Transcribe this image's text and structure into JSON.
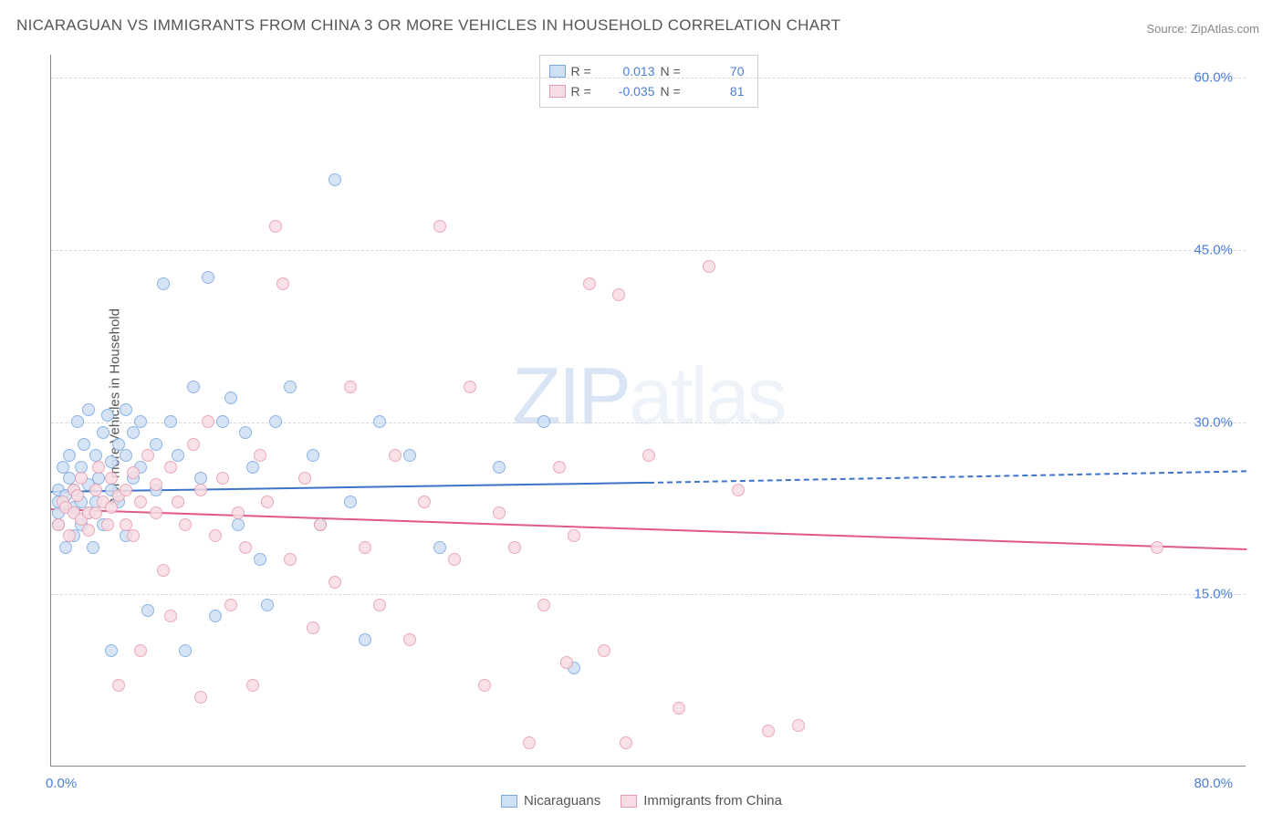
{
  "title": "NICARAGUAN VS IMMIGRANTS FROM CHINA 3 OR MORE VEHICLES IN HOUSEHOLD CORRELATION CHART",
  "source": "Source: ZipAtlas.com",
  "ylabel": "3 or more Vehicles in Household",
  "watermark_a": "ZIP",
  "watermark_b": "atlas",
  "chart": {
    "type": "scatter",
    "xlim": [
      0,
      80
    ],
    "ylim": [
      0,
      62
    ],
    "xtick_labels": [
      "0.0%",
      "80.0%"
    ],
    "ytick_values": [
      15,
      30,
      45,
      60
    ],
    "ytick_labels": [
      "15.0%",
      "30.0%",
      "45.0%",
      "60.0%"
    ],
    "background_color": "#ffffff",
    "grid_color": "#d8d8d8",
    "axis_color": "#878787",
    "label_color": "#4a7fd8",
    "marker_radius": 7,
    "marker_border_width": 1.2,
    "trend_width": 2
  },
  "series": [
    {
      "name": "Nicaraguans",
      "fill": "#cfe0f5",
      "stroke": "#7ba7e0",
      "trend_color": "#3d73c9",
      "R": "0.013",
      "N": "70",
      "trend": {
        "x0": 0,
        "y0": 24.0,
        "x1": 40,
        "y1": 24.8,
        "dash_from_x": 40,
        "dash_to_x": 80,
        "dash_y1": 25.8
      },
      "points": [
        [
          0.5,
          22
        ],
        [
          0.5,
          23
        ],
        [
          0.5,
          24
        ],
        [
          0.5,
          21
        ],
        [
          0.8,
          26
        ],
        [
          1.0,
          19
        ],
        [
          1.0,
          23.5
        ],
        [
          1.2,
          25
        ],
        [
          1.2,
          27
        ],
        [
          1.5,
          20
        ],
        [
          1.5,
          22.5
        ],
        [
          1.5,
          24
        ],
        [
          1.8,
          30
        ],
        [
          2.0,
          21
        ],
        [
          2.0,
          23
        ],
        [
          2.0,
          26
        ],
        [
          2.2,
          28
        ],
        [
          2.5,
          22
        ],
        [
          2.5,
          31
        ],
        [
          2.5,
          24.5
        ],
        [
          2.8,
          19
        ],
        [
          3.0,
          23
        ],
        [
          3.0,
          27
        ],
        [
          3.2,
          25
        ],
        [
          3.5,
          29
        ],
        [
          3.5,
          21
        ],
        [
          3.8,
          30.5
        ],
        [
          4.0,
          24
        ],
        [
          4.0,
          26.5
        ],
        [
          4.0,
          10
        ],
        [
          4.5,
          28
        ],
        [
          4.5,
          23
        ],
        [
          5.0,
          27
        ],
        [
          5.0,
          20
        ],
        [
          5.0,
          31
        ],
        [
          5.5,
          25
        ],
        [
          5.5,
          29
        ],
        [
          6.0,
          30
        ],
        [
          6.0,
          26
        ],
        [
          6.5,
          13.5
        ],
        [
          7.0,
          28
        ],
        [
          7.0,
          24
        ],
        [
          7.5,
          42
        ],
        [
          8.0,
          30
        ],
        [
          8.5,
          27
        ],
        [
          9.0,
          10
        ],
        [
          9.5,
          33
        ],
        [
          10.0,
          25
        ],
        [
          10.5,
          42.5
        ],
        [
          11.0,
          13
        ],
        [
          11.5,
          30
        ],
        [
          12.0,
          32
        ],
        [
          12.5,
          21
        ],
        [
          13.0,
          29
        ],
        [
          13.5,
          26
        ],
        [
          14.0,
          18
        ],
        [
          14.5,
          14
        ],
        [
          15.0,
          30
        ],
        [
          16.0,
          33
        ],
        [
          17.5,
          27
        ],
        [
          18.0,
          21
        ],
        [
          19.0,
          51
        ],
        [
          20.0,
          23
        ],
        [
          21.0,
          11
        ],
        [
          22.0,
          30
        ],
        [
          24.0,
          27
        ],
        [
          26.0,
          19
        ],
        [
          30.0,
          26
        ],
        [
          33.0,
          30
        ],
        [
          35.0,
          8.5
        ]
      ]
    },
    {
      "name": "Immigrants from China",
      "fill": "#f7dce3",
      "stroke": "#e89bb0",
      "trend_color": "#e05a85",
      "R": "-0.035",
      "N": "81",
      "trend": {
        "x0": 0,
        "y0": 22.5,
        "x1": 80,
        "y1": 19.0
      },
      "points": [
        [
          0.5,
          21
        ],
        [
          0.8,
          23
        ],
        [
          1.0,
          22.5
        ],
        [
          1.2,
          20
        ],
        [
          1.5,
          24
        ],
        [
          1.5,
          22
        ],
        [
          1.8,
          23.5
        ],
        [
          2.0,
          21.5
        ],
        [
          2.0,
          25
        ],
        [
          2.5,
          22
        ],
        [
          2.5,
          20.5
        ],
        [
          3.0,
          24
        ],
        [
          3.0,
          22
        ],
        [
          3.2,
          26
        ],
        [
          3.5,
          23
        ],
        [
          3.8,
          21
        ],
        [
          4.0,
          25
        ],
        [
          4.0,
          22.5
        ],
        [
          4.5,
          23.5
        ],
        [
          4.5,
          7
        ],
        [
          5.0,
          24
        ],
        [
          5.0,
          21
        ],
        [
          5.5,
          25.5
        ],
        [
          5.5,
          20
        ],
        [
          6.0,
          23
        ],
        [
          6.0,
          10
        ],
        [
          6.5,
          27
        ],
        [
          7.0,
          22
        ],
        [
          7.0,
          24.5
        ],
        [
          7.5,
          17
        ],
        [
          8.0,
          26
        ],
        [
          8.0,
          13
        ],
        [
          8.5,
          23
        ],
        [
          9.0,
          21
        ],
        [
          9.5,
          28
        ],
        [
          10.0,
          24
        ],
        [
          10.0,
          6
        ],
        [
          10.5,
          30
        ],
        [
          11.0,
          20
        ],
        [
          11.5,
          25
        ],
        [
          12.0,
          14
        ],
        [
          12.5,
          22
        ],
        [
          13.0,
          19
        ],
        [
          13.5,
          7
        ],
        [
          14.0,
          27
        ],
        [
          14.5,
          23
        ],
        [
          15.0,
          47
        ],
        [
          15.5,
          42
        ],
        [
          16.0,
          18
        ],
        [
          17.0,
          25
        ],
        [
          17.5,
          12
        ],
        [
          18.0,
          21
        ],
        [
          19.0,
          16
        ],
        [
          20.0,
          33
        ],
        [
          21.0,
          19
        ],
        [
          22.0,
          14
        ],
        [
          23.0,
          27
        ],
        [
          24.0,
          11
        ],
        [
          25.0,
          23
        ],
        [
          26.0,
          47
        ],
        [
          27.0,
          18
        ],
        [
          28.0,
          33
        ],
        [
          29.0,
          7
        ],
        [
          30.0,
          22
        ],
        [
          31.0,
          19
        ],
        [
          32.0,
          2
        ],
        [
          33.0,
          14
        ],
        [
          34.0,
          26
        ],
        [
          35.0,
          20
        ],
        [
          36.0,
          42
        ],
        [
          37.0,
          10
        ],
        [
          38.0,
          41
        ],
        [
          38.5,
          2
        ],
        [
          40.0,
          27
        ],
        [
          42.0,
          5
        ],
        [
          44.0,
          43.5
        ],
        [
          46.0,
          24
        ],
        [
          48.0,
          3
        ],
        [
          50.0,
          3.5
        ],
        [
          74.0,
          19
        ],
        [
          34.5,
          9
        ]
      ]
    }
  ],
  "stats_box": {
    "r_label": "R =",
    "n_label": "N ="
  },
  "bottom_legend": {
    "items": [
      "Nicaraguans",
      "Immigrants from China"
    ]
  }
}
